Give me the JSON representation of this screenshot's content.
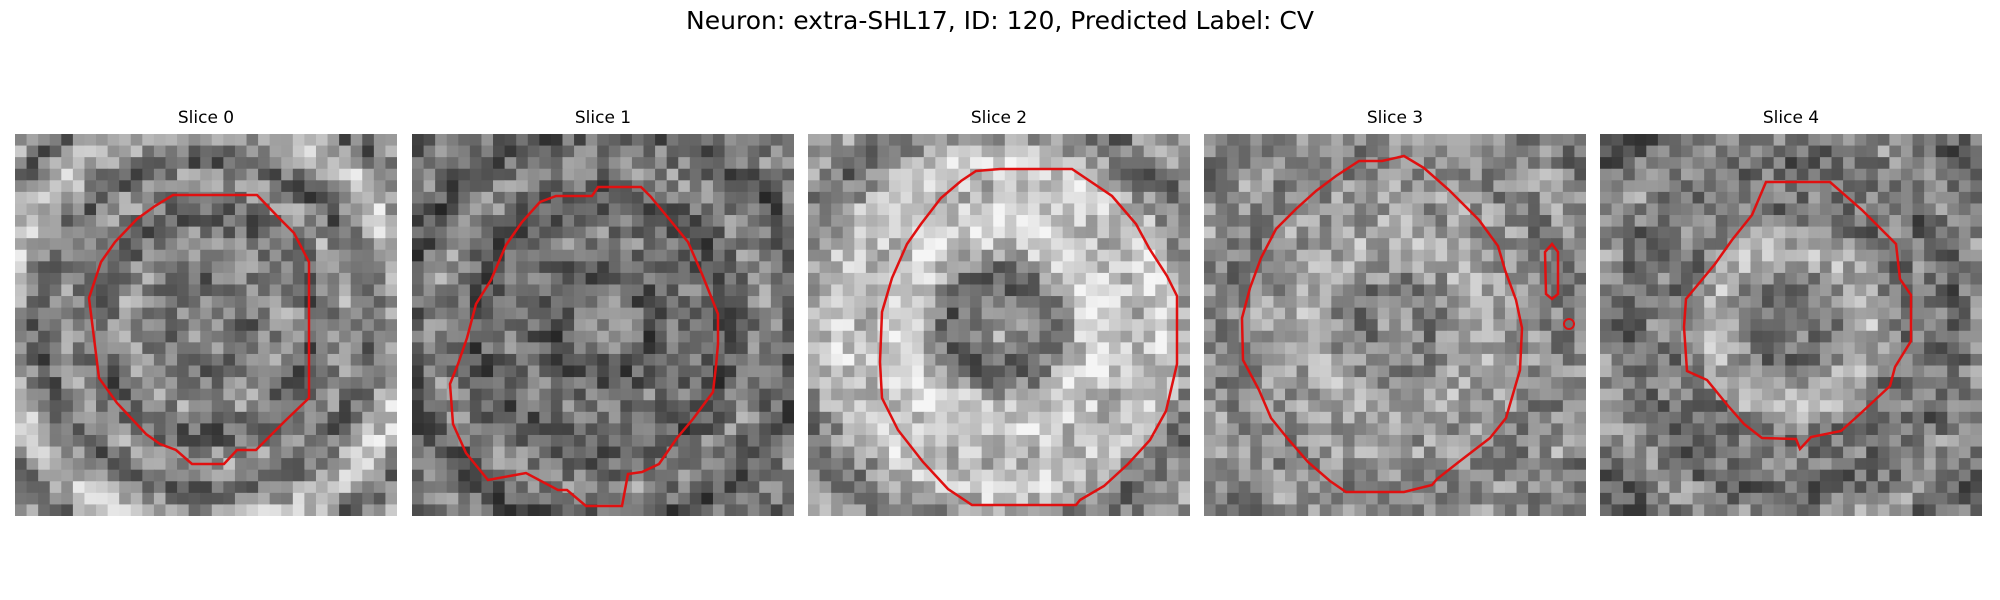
{
  "figure": {
    "title": "Neuron: extra-SHL17, ID: 120, Predicted Label: CV",
    "panels": [
      {
        "title": "Slice 0",
        "base": [
          135,
          140,
          145,
          150,
          145,
          140,
          130,
          120,
          115,
          110,
          110,
          115,
          120,
          125,
          130,
          135,
          140,
          150,
          155,
          150,
          140,
          130,
          120,
          110,
          100,
          95,
          95,
          100,
          110,
          120,
          130,
          140,
          150,
          155,
          150,
          140,
          120,
          105,
          95,
          100,
          110,
          120,
          135,
          150,
          165,
          180,
          190,
          195,
          200,
          195,
          185,
          170,
          150,
          120,
          105,
          100,
          110,
          130,
          150,
          165,
          165,
          160,
          150,
          140,
          130,
          125
        ],
        "outline": "#e01010"
      },
      {
        "title": "Slice 1",
        "base": [
          135,
          140,
          145,
          145,
          140,
          135,
          125,
          115,
          105,
          95,
          90,
          85,
          80,
          85,
          95,
          100,
          105,
          110,
          115,
          120,
          125,
          125,
          120,
          115,
          110,
          105,
          100,
          95,
          90,
          85,
          85,
          90,
          95,
          100,
          110,
          120,
          130,
          140,
          145,
          145,
          135,
          125,
          115,
          105,
          95,
          85,
          80,
          80,
          85,
          95,
          105,
          115,
          125,
          130,
          135,
          130,
          125,
          120,
          110,
          105,
          100,
          95,
          95,
          100,
          105,
          110
        ],
        "outline": "#e01010"
      },
      {
        "title": "Slice 2",
        "base": [
          165,
          165,
          160,
          155,
          150,
          140,
          130,
          120,
          110,
          100,
          95,
          95,
          100,
          110,
          125,
          140,
          155,
          170,
          185,
          195,
          205,
          210,
          215,
          215,
          215,
          210,
          205,
          200,
          195,
          190,
          185,
          180,
          180,
          185,
          190,
          195,
          200,
          205,
          205,
          200,
          195,
          185,
          175,
          165,
          155,
          145,
          135,
          125,
          115,
          110,
          110,
          115,
          120,
          130,
          140,
          150,
          160,
          165,
          165,
          160,
          155,
          150,
          145,
          140,
          140,
          145
        ],
        "outline": "#e01010"
      },
      {
        "title": "Slice 3",
        "base": [
          145,
          145,
          140,
          140,
          135,
          130,
          125,
          125,
          125,
          125,
          130,
          135,
          140,
          145,
          150,
          155,
          160,
          165,
          170,
          170,
          170,
          170,
          168,
          165,
          160,
          155,
          150,
          150,
          150,
          152,
          155,
          155,
          155,
          150,
          145,
          140,
          135,
          130,
          128,
          125,
          125,
          128,
          130,
          135,
          140,
          145,
          150,
          155,
          155,
          150,
          145,
          140,
          135,
          130,
          125,
          120,
          118,
          118,
          120,
          125,
          130,
          135,
          140,
          140,
          138,
          135
        ],
        "outline": "#e01010"
      },
      {
        "title": "Slice 4",
        "base": [
          120,
          125,
          130,
          130,
          125,
          120,
          115,
          110,
          110,
          115,
          120,
          130,
          140,
          150,
          160,
          170,
          175,
          180,
          180,
          175,
          170,
          160,
          150,
          140,
          130,
          120,
          115,
          110,
          110,
          115,
          120,
          125,
          130,
          125,
          120,
          115,
          110,
          105,
          100,
          100,
          105,
          110,
          120,
          130,
          140,
          145,
          150,
          150,
          145,
          140,
          130,
          120,
          110,
          105,
          100,
          95,
          95,
          100,
          105,
          110,
          115,
          120,
          120,
          118,
          115,
          115
        ],
        "outline": "#e01010"
      }
    ]
  }
}
